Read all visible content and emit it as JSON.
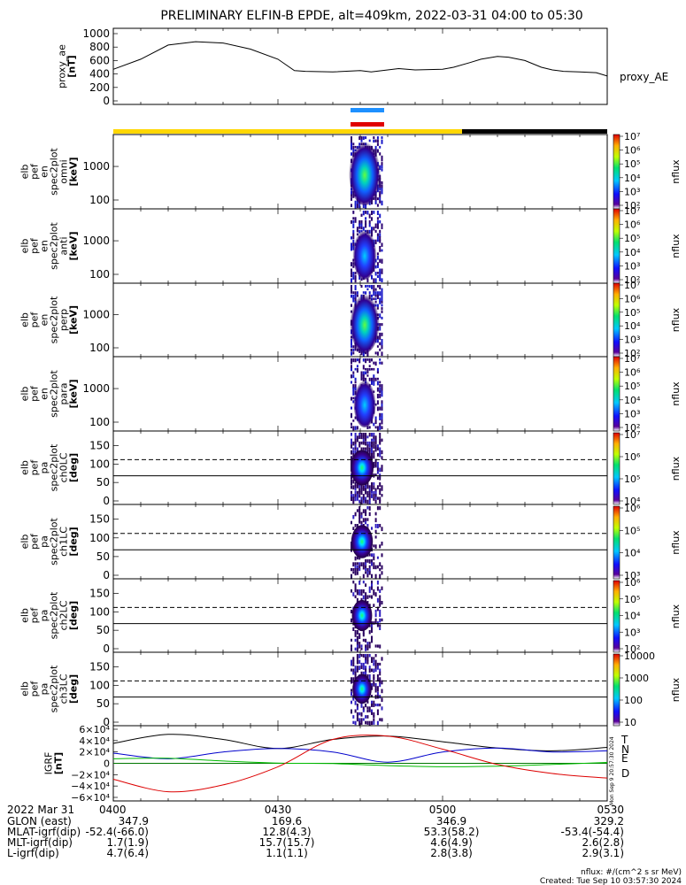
{
  "title": "PRELIMINARY ELFIN-B EPDE, alt=409km, 2022-03-31 04:00 to 05:30",
  "colors": {
    "yellow": "#ffd700",
    "black": "#000000",
    "blue_bar": "#1e90ff",
    "red_bar": "#e00000",
    "T": "#000000",
    "N": "#0000cc",
    "E": "#00bb00",
    "D": "#dd0000"
  },
  "chart_data": [
    {
      "type": "line",
      "panel": "proxy_ae",
      "ylabel_lines": [
        "proxy_ae",
        "[nT]"
      ],
      "legend": "proxy_AE",
      "ylim": [
        0,
        1000
      ],
      "yticks": [
        "1000",
        "800",
        "600",
        "400",
        "200",
        "0"
      ],
      "x_minutes": [
        0,
        5,
        10,
        15,
        20,
        25,
        30,
        33,
        35,
        40,
        45,
        47,
        50,
        52,
        55,
        60,
        62,
        65,
        67,
        70,
        72,
        75,
        78,
        80,
        82,
        85,
        88,
        90
      ],
      "values": [
        470,
        620,
        830,
        880,
        860,
        770,
        620,
        450,
        440,
        430,
        450,
        430,
        460,
        480,
        460,
        470,
        500,
        570,
        620,
        660,
        650,
        600,
        500,
        460,
        440,
        430,
        420,
        370
      ]
    },
    {
      "type": "heatmap",
      "panel": "spec_omni",
      "ylabel_lines": [
        "elb",
        "pef",
        "en",
        "spec2plot",
        "omni",
        "[keV]"
      ],
      "yticks": [
        "1000",
        "100"
      ],
      "colorbar_ticks": [
        "10⁷",
        "10⁶",
        "10⁵",
        "10⁴",
        "10³",
        "10²"
      ],
      "colorbar_label": "nflux",
      "scale": "log"
    },
    {
      "type": "heatmap",
      "panel": "spec_anti",
      "ylabel_lines": [
        "elb",
        "pef",
        "en",
        "spec2plot",
        "anti",
        "[keV]"
      ],
      "yticks": [
        "1000",
        "100"
      ],
      "colorbar_ticks": [
        "10⁷",
        "10⁶",
        "10⁵",
        "10⁴",
        "10³",
        "10²"
      ],
      "colorbar_label": "nflux",
      "scale": "log"
    },
    {
      "type": "heatmap",
      "panel": "spec_perp",
      "ylabel_lines": [
        "elb",
        "pef",
        "en",
        "spec2plot",
        "perp",
        "[keV]"
      ],
      "yticks": [
        "1000",
        "100"
      ],
      "colorbar_ticks": [
        "10⁷",
        "10⁶",
        "10⁵",
        "10⁴",
        "10³",
        "10²"
      ],
      "colorbar_label": "nflux",
      "scale": "log"
    },
    {
      "type": "heatmap",
      "panel": "spec_para",
      "ylabel_lines": [
        "elb",
        "pef",
        "en",
        "spec2plot",
        "para",
        "[keV]"
      ],
      "yticks": [
        "1000",
        "100"
      ],
      "colorbar_ticks": [
        "10⁷",
        "10⁶",
        "10⁵",
        "10⁴",
        "10³",
        "10²"
      ],
      "colorbar_label": "nflux",
      "scale": "log"
    },
    {
      "type": "heatmap",
      "panel": "pa_ch0",
      "ylabel_lines": [
        "elb",
        "pef",
        "pa",
        "spec2plot",
        "ch0LC",
        "[deg]"
      ],
      "yticks": [
        "150",
        "100",
        "50",
        "0"
      ],
      "ylim": [
        0,
        180
      ],
      "lc_lines_deg": [
        68,
        112
      ],
      "colorbar_ticks": [
        "10⁷",
        "10⁶",
        "10⁵",
        "10⁴"
      ],
      "colorbar_label": "nflux"
    },
    {
      "type": "heatmap",
      "panel": "pa_ch1",
      "ylabel_lines": [
        "elb",
        "pef",
        "pa",
        "spec2plot",
        "ch1LC",
        "[deg]"
      ],
      "yticks": [
        "150",
        "100",
        "50",
        "0"
      ],
      "ylim": [
        0,
        180
      ],
      "lc_lines_deg": [
        68,
        112
      ],
      "colorbar_ticks": [
        "10⁶",
        "10⁵",
        "10⁴",
        "10³"
      ],
      "colorbar_label": "nflux"
    },
    {
      "type": "heatmap",
      "panel": "pa_ch2",
      "ylabel_lines": [
        "elb",
        "pef",
        "pa",
        "spec2plot",
        "ch2LC",
        "[deg]"
      ],
      "yticks": [
        "150",
        "100",
        "50",
        "0"
      ],
      "ylim": [
        0,
        180
      ],
      "lc_lines_deg": [
        68,
        112
      ],
      "colorbar_ticks": [
        "10⁶",
        "10⁵",
        "10⁴",
        "10³",
        "10²"
      ],
      "colorbar_label": "nflux"
    },
    {
      "type": "heatmap",
      "panel": "pa_ch3",
      "ylabel_lines": [
        "elb",
        "pef",
        "pa",
        "spec2plot",
        "ch3LC",
        "[deg]"
      ],
      "yticks": [
        "150",
        "100",
        "50",
        "0"
      ],
      "ylim": [
        0,
        180
      ],
      "lc_lines_deg": [
        68,
        112
      ],
      "colorbar_ticks": [
        "10000",
        "1000",
        "100",
        "10"
      ],
      "colorbar_label": "nflux"
    },
    {
      "type": "line",
      "panel": "igrf",
      "ylabel_lines": [
        "IGRF",
        "[nT]"
      ],
      "ylim": [
        -60000,
        60000
      ],
      "yticks": [
        "6×10⁴",
        "4×10⁴",
        "2×10⁴",
        "0",
        "−2×10⁴",
        "−4×10⁴",
        "−6×10⁴"
      ],
      "x_minutes": [
        0,
        10,
        20,
        30,
        40,
        50,
        60,
        70,
        80,
        90
      ],
      "series": [
        {
          "name": "T",
          "values": [
            35000,
            51000,
            42000,
            26000,
            42000,
            48000,
            38000,
            27000,
            22000,
            28000
          ]
        },
        {
          "name": "N",
          "values": [
            18000,
            8000,
            20000,
            26000,
            20000,
            2000,
            20000,
            27000,
            20000,
            22000
          ]
        },
        {
          "name": "E",
          "values": [
            8000,
            9000,
            4000,
            500,
            -500,
            -4000,
            -6000,
            -5000,
            -2000,
            1500
          ]
        },
        {
          "name": "D",
          "values": [
            -28000,
            -50000,
            -38000,
            -6000,
            42000,
            48000,
            25000,
            -2000,
            -18000,
            -26000
          ]
        }
      ]
    }
  ],
  "time_axis": {
    "date_label": "2022 Mar 31",
    "ticks": [
      "0400",
      "0430",
      "0500",
      "0530"
    ],
    "tick_minutes": [
      0,
      30,
      60,
      90
    ],
    "rows": [
      {
        "label": "GLON (east)",
        "values": [
          "347.9",
          "169.6",
          "346.9",
          "329.2"
        ]
      },
      {
        "label": "MLAT-igrf(dip)",
        "values": [
          "-52.4(-66.0)",
          "12.8(4.3)",
          "53.3(58.2)",
          "-53.4(-54.4)"
        ]
      },
      {
        "label": "MLT-igrf(dip)",
        "values": [
          "1.7(1.9)",
          "15.7(15.7)",
          "4.6(4.9)",
          "2.6(2.8)"
        ]
      },
      {
        "label": "L-igrf(dip)",
        "values": [
          "4.7(6.4)",
          "1.1(1.1)",
          "2.8(3.8)",
          "2.9(3.1)"
        ]
      }
    ]
  },
  "footer": {
    "units": "nflux: #/(cm^2 s sr MeV)",
    "created": "Created: Tue Sep 10 03:57:30 2024",
    "side_stamp": "Mon Sep 9 20:57:30 2024"
  }
}
